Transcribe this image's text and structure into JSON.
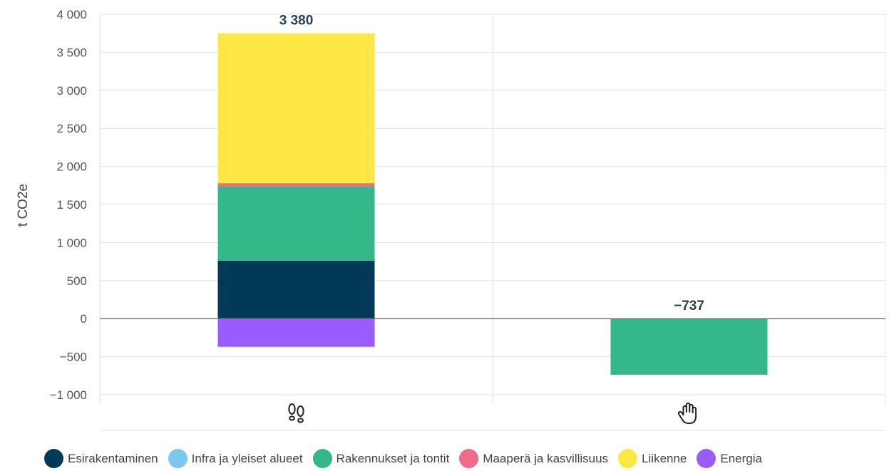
{
  "chart_data": {
    "type": "bar",
    "stacked": true,
    "categories": [
      "footprint",
      "handprint"
    ],
    "category_icons": [
      "footprints-icon",
      "hand-icon"
    ],
    "ylabel": "t CO2e",
    "ylim": [
      -1000,
      4000
    ],
    "yticks": [
      -1000,
      -500,
      0,
      500,
      1000,
      1500,
      2000,
      2500,
      3000,
      3500,
      4000
    ],
    "ytick_labels": [
      "−1 000",
      "−500",
      "0",
      "500",
      "1 000",
      "1 500",
      "2 000",
      "2 500",
      "3 000",
      "3 500",
      "4 000"
    ],
    "grid": true,
    "legend_position": "bottom",
    "series": [
      {
        "name": "Esirakentaminen",
        "color": "#003a57",
        "values": [
          760,
          0
        ]
      },
      {
        "name": "Infra ja yleiset alueet",
        "color": "#7cc7f0",
        "values": [
          0,
          0
        ]
      },
      {
        "name": "Rakennukset ja tontit",
        "color": "#35b889",
        "values": [
          980,
          -737
        ]
      },
      {
        "name": "Maaperä ja kasvillisuus",
        "color": "#f06a8a",
        "values": [
          40,
          0
        ]
      },
      {
        "name": "Liikenne",
        "color": "#ffe846",
        "values": [
          1970,
          0
        ]
      },
      {
        "name": "Energia",
        "color": "#9b5cff",
        "values": [
          -370,
          0
        ]
      }
    ],
    "totals": [
      3380,
      -737
    ],
    "total_labels": [
      "3 380",
      "−737"
    ]
  }
}
